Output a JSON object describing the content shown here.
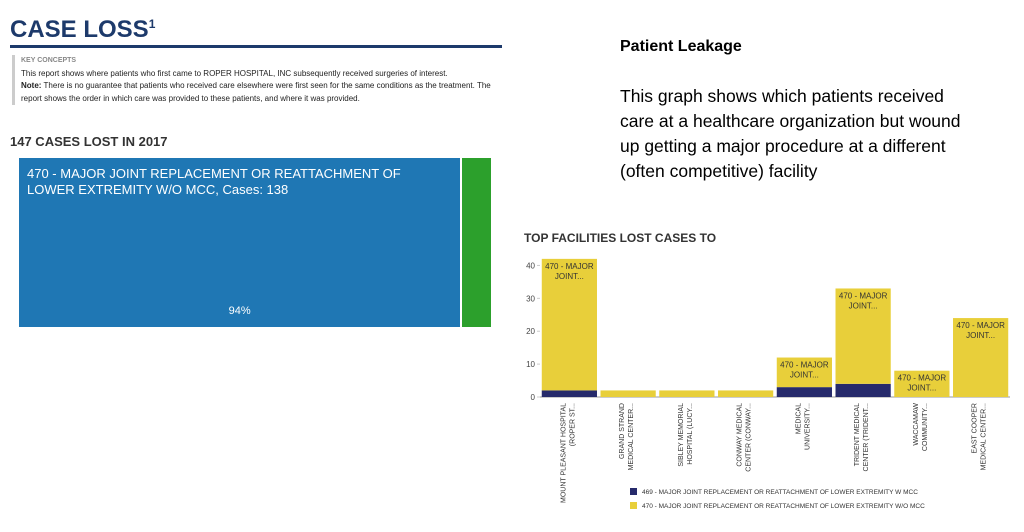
{
  "report": {
    "title": "CASE LOSS",
    "title_note": "1",
    "concepts_heading": "KEY CONCEPTS",
    "concepts_text": "This report shows where patients who first came to ROPER HOSPITAL, INC subsequently received surgeries of interest.",
    "note_label": "Note:",
    "note_text": "There is no guarantee that patients who received care elsewhere were first seen for the same conditions as the treatment. The report shows the order in which care was provided to these patients, and where it was provided.",
    "subtitle": "147 CASES LOST IN 2017"
  },
  "slide": {
    "heading": "Patient Leakage",
    "text": "This graph shows which patients received care at a healthcare organization but wound up getting a major procedure at a different (often competitive) facility"
  },
  "chart_data": [
    {
      "type": "treemap",
      "categories": [
        "470 - MAJOR JOINT REPLACEMENT OR REATTACHMENT OF LOWER EXTREMITY W/O MCC, Cases: 138",
        null
      ],
      "values": [
        138,
        9
      ],
      "value_labels": [
        "94%",
        null
      ],
      "colors": [
        "#1f77b4",
        "#2ca02c"
      ]
    },
    {
      "type": "stacked-bar",
      "title": "TOP FACILITIES LOST CASES TO",
      "categories": [
        "MOUNT PLEASANT HOSPITAL (ROPER ST...",
        "GRAND STRAND MEDICAL CENTER...",
        "SIBLEY MEMORIAL HOSPITAL (LUCY...",
        "CONWAY MEDICAL CENTER (CONWAY...",
        "MEDICAL UNIVERSITY...",
        "TRIDENT MEDICAL CENTER (TRIDENT...",
        "WACCAMAW COMMUNITY...",
        "EAST COOPER MEDICAL CENTER..."
      ],
      "series": [
        {
          "name": "469 - MAJOR JOINT REPLACEMENT OR REATTACHMENT OF LOWER EXTREMITY W MCC",
          "color": "#262a6b",
          "values": [
            2,
            0,
            0,
            0,
            3,
            4,
            0,
            0
          ]
        },
        {
          "name": "470 - MAJOR JOINT REPLACEMENT OR REATTACHMENT OF LOWER EXTREMITY W/O MCC",
          "color": "#e8cf3a",
          "values": [
            40,
            2,
            2,
            2,
            9,
            29,
            8,
            24
          ],
          "bar_labels": [
            "470 - MAJOR JOINT...",
            null,
            null,
            null,
            "470 - MAJOR JOINT...",
            "470 - MAJOR JOINT...",
            "470 - MAJOR JOINT...",
            "470 - MAJOR JOINT..."
          ]
        }
      ],
      "ylim": [
        0,
        45
      ],
      "yticks": [
        0,
        10,
        20,
        30,
        40
      ],
      "grid": false
    }
  ]
}
